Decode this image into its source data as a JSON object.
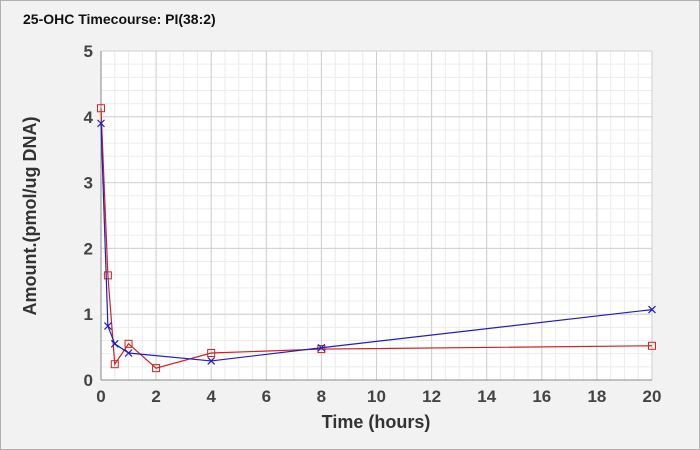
{
  "chart_data": {
    "type": "line",
    "title": "25-OHC Timecourse: PI(38:2)",
    "xlabel": "Time (hours)",
    "ylabel": "Amount.(pmol/ug DNA)",
    "xlim": [
      0,
      20
    ],
    "ylim": [
      0,
      5
    ],
    "xticks": [
      0,
      2,
      4,
      6,
      8,
      10,
      12,
      14,
      16,
      18,
      20
    ],
    "yticks": [
      0,
      1,
      2,
      3,
      4,
      5
    ],
    "grid": true,
    "minor_grid": true,
    "series": [
      {
        "marker": "square",
        "color": "#d42020",
        "x": [
          0,
          0.25,
          0.5,
          1,
          2,
          4,
          8,
          20
        ],
        "y": [
          4.13,
          1.59,
          0.24,
          0.55,
          0.18,
          0.41,
          0.47,
          0.52
        ]
      },
      {
        "marker": "x",
        "color": "#1f1fbf",
        "x": [
          0,
          0.25,
          0.5,
          1,
          4,
          8,
          20
        ],
        "y": [
          3.9,
          0.82,
          0.55,
          0.41,
          0.29,
          0.49,
          1.07
        ]
      }
    ]
  }
}
